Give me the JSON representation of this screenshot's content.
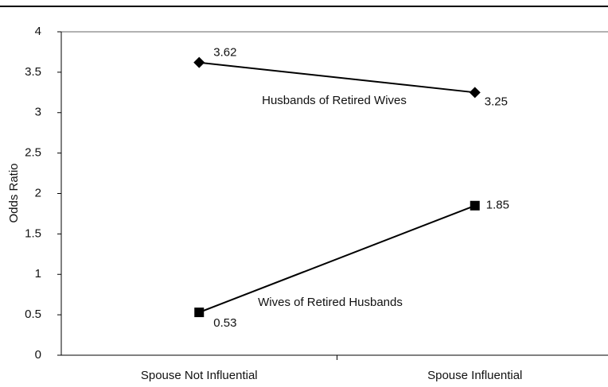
{
  "chart_data": {
    "type": "line",
    "y_label": "Odds Ratio",
    "categories": [
      "Spouse Not Influential",
      "Spouse Influential"
    ],
    "series": [
      {
        "name": "Husbands of Retired Wives",
        "color": "#000000",
        "marker": "diamond",
        "values": [
          3.62,
          3.25
        ]
      },
      {
        "name": "Wives of Retired Husbands",
        "color": "#000000",
        "marker": "square",
        "values": [
          0.53,
          1.85
        ]
      }
    ],
    "ylim": [
      0,
      4
    ],
    "yticks": [
      0,
      0.5,
      1,
      1.5,
      2,
      2.5,
      3,
      3.5,
      4
    ],
    "grid": false
  }
}
